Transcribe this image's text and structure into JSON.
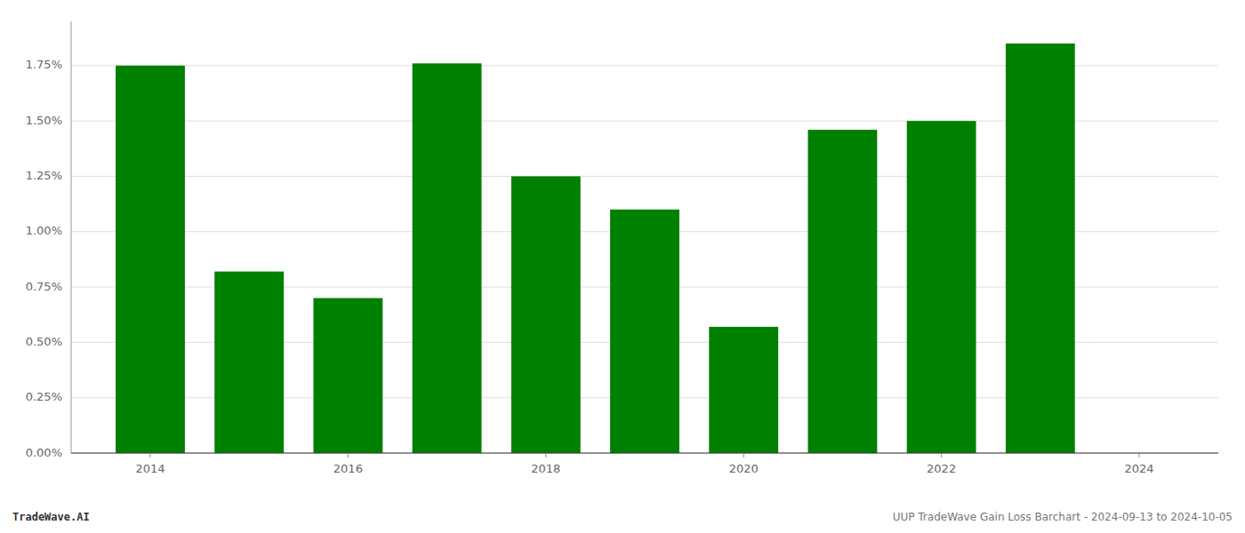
{
  "chart_data": {
    "type": "bar",
    "x": [
      2014,
      2015,
      2016,
      2017,
      2018,
      2019,
      2020,
      2021,
      2022,
      2023
    ],
    "values": [
      1.75,
      0.82,
      0.7,
      1.76,
      1.25,
      1.1,
      0.57,
      1.46,
      1.5,
      1.85
    ],
    "color": "#008000",
    "xlim": [
      2013.2,
      2024.8
    ],
    "xticks": [
      2014,
      2016,
      2018,
      2020,
      2022,
      2024
    ],
    "ylim": [
      0,
      1.95
    ],
    "yticks": [
      {
        "value": 0,
        "label": "0.00%"
      },
      {
        "value": 0.25,
        "label": "0.25%"
      },
      {
        "value": 0.5,
        "label": "0.50%"
      },
      {
        "value": 0.75,
        "label": "0.75%"
      },
      {
        "value": 1.0,
        "label": "1.00%"
      },
      {
        "value": 1.25,
        "label": "1.25%"
      },
      {
        "value": 1.5,
        "label": "1.50%"
      },
      {
        "value": 1.75,
        "label": "1.75%"
      }
    ],
    "grid": true,
    "annotations": [
      "TradeWave.AI",
      "UUP TradeWave Gain Loss Barchart - 2024-09-13 to 2024-10-05"
    ]
  }
}
